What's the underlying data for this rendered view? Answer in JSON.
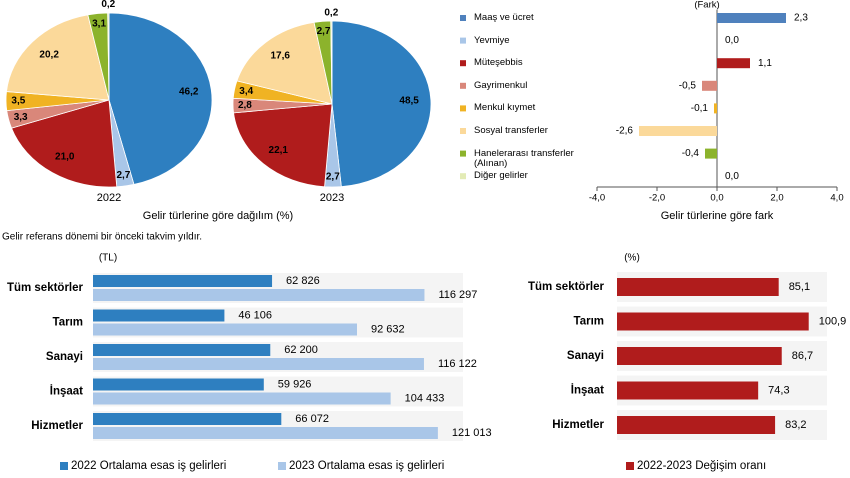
{
  "note": "Gelir referans dönemi bir önceki takvim yıldır.",
  "chart_data": [
    {
      "type": "pie",
      "title": "2022",
      "xlabel": "Gelir türlerine göre dağılım (%)",
      "values": [
        46.2,
        2.7,
        21.0,
        3.3,
        3.5,
        20.2,
        3.1,
        0.2
      ],
      "value_labels": [
        "46,2",
        "2,7",
        "21,0",
        "3,3",
        "3,5",
        "20,2",
        "3,1",
        "0,2"
      ],
      "colors": [
        "#2e7fc0",
        "#a9c6e8",
        "#b01c1c",
        "#d9877a",
        "#f0b323",
        "#fbd99a",
        "#8cb32c",
        "#e3ebb5"
      ]
    },
    {
      "type": "pie",
      "title": "2023",
      "values": [
        48.5,
        2.7,
        22.1,
        2.8,
        3.4,
        17.6,
        2.7,
        0.2
      ],
      "value_labels": [
        "48,5",
        "2,7",
        "22,1",
        "2,8",
        "3,4",
        "17,6",
        "2,7",
        "0,2"
      ],
      "colors": [
        "#2e7fc0",
        "#a9c6e8",
        "#b01c1c",
        "#d9877a",
        "#f0b323",
        "#fbd99a",
        "#8cb32c",
        "#e3ebb5"
      ]
    },
    {
      "type": "diffbar",
      "ylabel": "(Fark)",
      "xlabel": "Gelir türlerine göre fark",
      "categories": [
        "Maaş ve ücret",
        "Yevmiye",
        "Müteşebbis",
        "Gayrimenkul",
        "Menkul kıymet",
        "Sosyal transferler",
        "Hanelerarası transferler (Alınan)",
        "Diğer gelirler"
      ],
      "values": [
        2.3,
        0.0,
        1.1,
        -0.5,
        -0.1,
        -2.6,
        -0.4,
        0.0
      ],
      "value_labels": [
        "2,3",
        "0,0",
        "1,1",
        "-0,5",
        "-0,1",
        "-2,6",
        "-0,4",
        "0,0"
      ],
      "colors": [
        "#4f81bd",
        "#a9c6e8",
        "#b01c1c",
        "#d9877a",
        "#f0b323",
        "#fbd99a",
        "#8cb32c",
        "#e3ebb5"
      ],
      "xlim": [
        -4,
        4
      ],
      "xticks": [
        {
          "value": -4,
          "label": "-4,0"
        },
        {
          "value": -2,
          "label": "-2,0"
        },
        {
          "value": 0,
          "label": "0,0"
        },
        {
          "value": 2,
          "label": "2,0"
        },
        {
          "value": 4,
          "label": "4,0"
        }
      ]
    },
    {
      "type": "groupbar",
      "ylabel": "(TL)",
      "categories": [
        "Tüm sektörler",
        "Tarım",
        "Sanayi",
        "İnşaat",
        "Hizmetler"
      ],
      "xlim": [
        0,
        140000
      ],
      "series": [
        {
          "name": "2022 Ortalama esas iş gelirleri",
          "color": "#2e7fc0",
          "values": [
            62826,
            46106,
            62200,
            59926,
            66072
          ],
          "value_labels": [
            "62 826",
            "46 106",
            "62 200",
            "59 926",
            "66 072"
          ]
        },
        {
          "name": "2023 Ortalama esas iş gelirleri",
          "color": "#a9c6e8",
          "values": [
            116297,
            92632,
            116122,
            104433,
            121013
          ],
          "value_labels": [
            "116 297",
            "92 632",
            "116 122",
            "104 433",
            "121 013"
          ]
        }
      ]
    },
    {
      "type": "groupbar",
      "ylabel": "(%)",
      "categories": [
        "Tüm sektörler",
        "Tarım",
        "Sanayi",
        "İnşaat",
        "Hizmetler"
      ],
      "xlim": [
        0,
        110
      ],
      "series": [
        {
          "name": "2022-2023 Değişim oranı",
          "color": "#b01c1c",
          "values": [
            85.1,
            100.9,
            86.7,
            74.3,
            83.2
          ],
          "value_labels": [
            "85,1",
            "100,9",
            "86,7",
            "74,3",
            "83,2"
          ]
        }
      ]
    }
  ]
}
